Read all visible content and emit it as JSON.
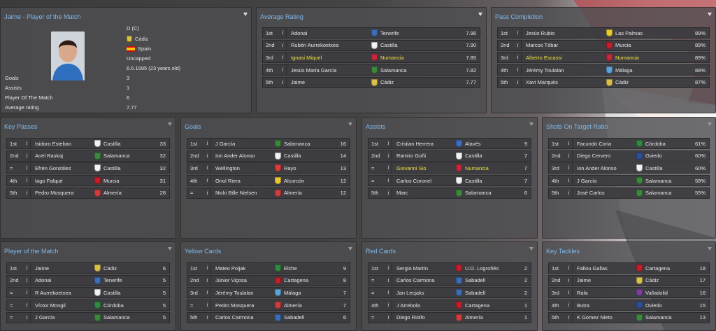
{
  "colors": {
    "title": "#7fb8e8",
    "highlight": "#f0e040"
  },
  "player_card": {
    "title": "Jaime - Player of the Match",
    "position": "D (C)",
    "club": "Cádiz",
    "nation": "Spain",
    "caps": "Uncapped",
    "dob": "6.6.1995 (23 years old)",
    "stats": [
      {
        "label": "Goals",
        "value": "3"
      },
      {
        "label": "Assists",
        "value": "1"
      },
      {
        "label": "Player Of The Match",
        "value": "6"
      },
      {
        "label": "Average rating",
        "value": "7.77"
      }
    ]
  },
  "panels": [
    {
      "id": "average-rating",
      "title": "Average Rating",
      "rows": [
        {
          "rank": "1st",
          "name": "Adonai",
          "club": "Tenerife",
          "crest": "#3d6fb6",
          "value": "7.96"
        },
        {
          "rank": "2nd",
          "name": "Rubén Aurrekoetxea",
          "club": "Castilla",
          "crest": "#f2f2f2",
          "value": "7.90"
        },
        {
          "rank": "3rd",
          "name": "Ignasi Miquel",
          "club": "Numancia",
          "crest": "#c8283c",
          "value": "7.85",
          "highlight": true
        },
        {
          "rank": "4th",
          "name": "Jesús María García",
          "club": "Salamanca",
          "crest": "#3b8a3b",
          "value": "7.82"
        },
        {
          "rank": "5th",
          "name": "Jaime",
          "club": "Cádiz",
          "crest": "#d9c04b",
          "value": "7.77"
        }
      ]
    },
    {
      "id": "pass-completion",
      "title": "Pass Completion",
      "rows": [
        {
          "rank": "1st",
          "name": "Jesús Rubio",
          "club": "Las Palmas",
          "crest": "#e8c930",
          "value": "89%"
        },
        {
          "rank": "2nd",
          "name": "Marcos Tébar",
          "club": "Murcia",
          "crest": "#c41e2a",
          "value": "89%"
        },
        {
          "rank": "3rd",
          "name": "Alberto Escassi",
          "club": "Numancia",
          "crest": "#c8283c",
          "value": "89%",
          "highlight": true
        },
        {
          "rank": "4th",
          "name": "Jérémy Toulalan",
          "club": "Málaga",
          "crest": "#5ba4d8",
          "value": "88%"
        },
        {
          "rank": "5th",
          "name": "Xavi Marquès",
          "club": "Cádiz",
          "crest": "#d9c04b",
          "value": "87%"
        }
      ]
    },
    {
      "id": "key-passes",
      "title": "Key Passes",
      "rows": [
        {
          "rank": "1st",
          "name": "Isidoro Esteban",
          "club": "Castilla",
          "crest": "#f2f2f2",
          "value": "33"
        },
        {
          "rank": "2nd",
          "name": "Anel Raskaj",
          "club": "Salamanca",
          "crest": "#3b8a3b",
          "value": "32"
        },
        {
          "rank": "=",
          "name": "Efrén González",
          "club": "Castilla",
          "crest": "#f2f2f2",
          "value": "32"
        },
        {
          "rank": "4th",
          "name": "Iago Falqué",
          "club": "Murcia",
          "crest": "#c41e2a",
          "value": "31"
        },
        {
          "rank": "5th",
          "name": "Pedro Mosquera",
          "club": "Almería",
          "crest": "#d23c3c",
          "value": "28"
        }
      ]
    },
    {
      "id": "goals",
      "title": "Goals",
      "rows": [
        {
          "rank": "1st",
          "name": "J García",
          "club": "Salamanca",
          "crest": "#3b8a3b",
          "value": "16"
        },
        {
          "rank": "2nd",
          "name": "Ion Ander Alonso",
          "club": "Castilla",
          "crest": "#f2f2f2",
          "value": "14"
        },
        {
          "rank": "3rd",
          "name": "Wellington",
          "club": "Rayo",
          "crest": "#e03a3a",
          "value": "13"
        },
        {
          "rank": "4th",
          "name": "Oriol Riera",
          "club": "Alcorcón",
          "crest": "#e8c930",
          "value": "12"
        },
        {
          "rank": "=",
          "name": "Nicki Bille Nielsen",
          "club": "Almería",
          "crest": "#d23c3c",
          "value": "12"
        }
      ]
    },
    {
      "id": "assists",
      "title": "Assists",
      "rows": [
        {
          "rank": "1st",
          "name": "Cristian Herrera",
          "club": "Alavés",
          "crest": "#3b6ec4",
          "value": "9"
        },
        {
          "rank": "2nd",
          "name": "Ramiro Goñi",
          "club": "Castilla",
          "crest": "#f2f2f2",
          "value": "7"
        },
        {
          "rank": "=",
          "name": "Giovanni Sio",
          "club": "Numancia",
          "crest": "#c8283c",
          "value": "7",
          "highlight": true
        },
        {
          "rank": "=",
          "name": "Carlos Coronel",
          "club": "Castilla",
          "crest": "#f2f2f2",
          "value": "7"
        },
        {
          "rank": "5th",
          "name": "Marc",
          "club": "Salamanca",
          "crest": "#3b8a3b",
          "value": "6"
        }
      ]
    },
    {
      "id": "shots-on-target",
      "title": "Shots On Target Ratio",
      "rows": [
        {
          "rank": "1st",
          "name": "Facundo Coria",
          "club": "Córdoba",
          "crest": "#2e8b3e",
          "value": "61%"
        },
        {
          "rank": "2nd",
          "name": "Diego Cervero",
          "club": "Oviedo",
          "crest": "#2a4fa0",
          "value": "60%"
        },
        {
          "rank": "3rd",
          "name": "Ion Ander Alonso",
          "club": "Castilla",
          "crest": "#f2f2f2",
          "value": "60%"
        },
        {
          "rank": "4th",
          "name": "J García",
          "club": "Salamanca",
          "crest": "#3b8a3b",
          "value": "58%"
        },
        {
          "rank": "5th",
          "name": "José Carlos",
          "club": "Salamanca",
          "crest": "#3b8a3b",
          "value": "55%"
        }
      ]
    },
    {
      "id": "player-of-the-match",
      "title": "Player of the Match",
      "rows": [
        {
          "rank": "1st",
          "name": "Jaime",
          "club": "Cádiz",
          "crest": "#d9c04b",
          "value": "6"
        },
        {
          "rank": "2nd",
          "name": "Adonai",
          "club": "Tenerife",
          "crest": "#3d6fb6",
          "value": "5"
        },
        {
          "rank": "=",
          "name": "R Aurrekoetxea",
          "club": "Castilla",
          "crest": "#f2f2f2",
          "value": "5"
        },
        {
          "rank": "=",
          "name": "Víctor Mongil",
          "club": "Córdoba",
          "crest": "#2e8b3e",
          "value": "5"
        },
        {
          "rank": "=",
          "name": "J García",
          "club": "Salamanca",
          "crest": "#3b8a3b",
          "value": "5"
        }
      ]
    },
    {
      "id": "yellow-cards",
      "title": "Yellow Cards",
      "rows": [
        {
          "rank": "1st",
          "name": "Mateo Poljak",
          "club": "Elche",
          "crest": "#2e8b3e",
          "value": "9"
        },
        {
          "rank": "2nd",
          "name": "Júnior Viçosa",
          "club": "Cartagena",
          "crest": "#c41e2a",
          "value": "8"
        },
        {
          "rank": "3rd",
          "name": "Jérémy Toulalan",
          "club": "Málaga",
          "crest": "#5ba4d8",
          "value": "7"
        },
        {
          "rank": "=",
          "name": "Pedro Mosquera",
          "club": "Almería",
          "crest": "#d23c3c",
          "value": "7"
        },
        {
          "rank": "5th",
          "name": "Carlos Carmona",
          "club": "Sabadell",
          "crest": "#3a6db5",
          "value": "6"
        }
      ]
    },
    {
      "id": "red-cards",
      "title": "Red Cards",
      "rows": [
        {
          "rank": "1st",
          "name": "Sergio Martín",
          "club": "U.D. Logroñés",
          "crest": "#c41e2a",
          "value": "2"
        },
        {
          "rank": "=",
          "name": "Carlos Carmona",
          "club": "Sabadell",
          "crest": "#3a6db5",
          "value": "2"
        },
        {
          "rank": "=",
          "name": "Jan Lecjaks",
          "club": "Sabadell",
          "crest": "#3a6db5",
          "value": "2"
        },
        {
          "rank": "4th",
          "name": "J Arrebola",
          "club": "Cartagena",
          "crest": "#c41e2a",
          "value": "1"
        },
        {
          "rank": "=",
          "name": "Diego Riolfo",
          "club": "Almería",
          "crest": "#d23c3c",
          "value": "1"
        }
      ]
    },
    {
      "id": "key-tackles",
      "title": "Key Tackles",
      "rows": [
        {
          "rank": "1st",
          "name": "Fallou Gallas",
          "club": "Cartagena",
          "crest": "#c41e2a",
          "value": "18"
        },
        {
          "rank": "2nd",
          "name": "Jaime",
          "club": "Cádiz",
          "crest": "#d9c04b",
          "value": "17"
        },
        {
          "rank": "3rd",
          "name": "Rafa",
          "club": "Valladolid",
          "crest": "#7a3fa0",
          "value": "16"
        },
        {
          "rank": "4th",
          "name": "Butra",
          "club": "Oviedo",
          "crest": "#2a4fa0",
          "value": "15"
        },
        {
          "rank": "5th",
          "name": "K Gomez Nieto",
          "club": "Salamanca",
          "crest": "#3b8a3b",
          "value": "13"
        }
      ]
    }
  ]
}
